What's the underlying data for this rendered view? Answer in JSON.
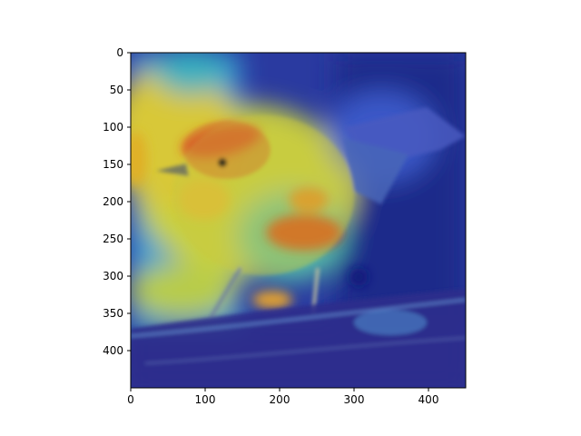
{
  "chart_data": {
    "type": "heatmap",
    "title": "",
    "xlabel": "",
    "ylabel": "",
    "xlim": [
      0,
      450
    ],
    "ylim": [
      450,
      0
    ],
    "xticks": [
      0,
      100,
      200,
      300,
      400
    ],
    "yticks": [
      0,
      50,
      100,
      150,
      200,
      250,
      300,
      350,
      400
    ],
    "x_tick_labels": [
      "0",
      "100",
      "200",
      "300",
      "400"
    ],
    "y_tick_labels": [
      "0",
      "50",
      "100",
      "150",
      "200",
      "250",
      "300",
      "350",
      "400"
    ],
    "colormap": "jet",
    "background_content": "photo of a small bird on a branch with a heatmap overlay",
    "hotspots": [
      {
        "x": 90,
        "y": 120,
        "intensity": 1.0
      },
      {
        "x": 230,
        "y": 250,
        "intensity": 0.95
      },
      {
        "x": 250,
        "y": 200,
        "intensity": 0.75
      },
      {
        "x": 120,
        "y": 200,
        "intensity": 0.7
      },
      {
        "x": 40,
        "y": 170,
        "intensity": 0.55
      },
      {
        "x": 180,
        "y": 330,
        "intensity": 0.6
      },
      {
        "x": 330,
        "y": 120,
        "intensity": 0.35
      },
      {
        "x": 380,
        "y": 300,
        "intensity": 0.25
      }
    ],
    "grid": false,
    "legend": "none"
  }
}
